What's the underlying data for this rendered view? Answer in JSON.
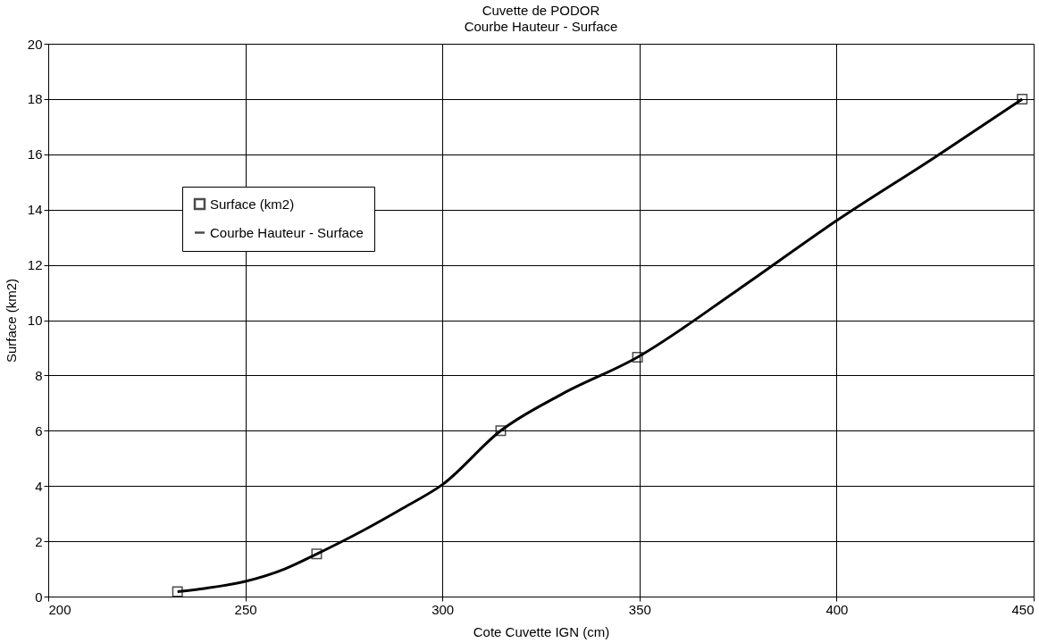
{
  "chart_data": {
    "type": "scatter",
    "title": "Cuvette de PODOR",
    "subtitle": "Courbe Hauteur - Surface",
    "xlabel": "Cote Cuvette IGN (cm)",
    "ylabel": "Surface (km2)",
    "series": [
      {
        "name": "Surface (km2)",
        "marker": "square",
        "color": "#000000",
        "x": [
          232.8,
          268.1,
          314.8,
          349.5,
          447.1
        ],
        "values": [
          0.18,
          1.54,
          6.0,
          8.66,
          18.0
        ]
      },
      {
        "name": "Courbe Hauteur - Surface",
        "type": "line",
        "marker": "none",
        "line_style": "solid",
        "color": "#000000",
        "x": [
          232.8,
          240,
          250,
          260,
          268.1,
          280,
          290,
          300,
          314.8,
          330,
          349.5,
          375,
          400,
          425,
          447.1
        ],
        "values": [
          0.18,
          0.3,
          0.55,
          1.0,
          1.54,
          2.4,
          3.2,
          4.05,
          6.0,
          7.3,
          8.66,
          11.1,
          13.6,
          15.9,
          18.0
        ]
      }
    ],
    "xlim": [
      200,
      450
    ],
    "xticks": [
      200,
      250,
      300,
      350,
      400,
      450
    ],
    "ylim": [
      0,
      20
    ],
    "yticks": [
      0,
      2,
      4,
      6,
      8,
      10,
      12,
      14,
      16,
      18,
      20
    ],
    "grid": true,
    "legend": "left"
  }
}
